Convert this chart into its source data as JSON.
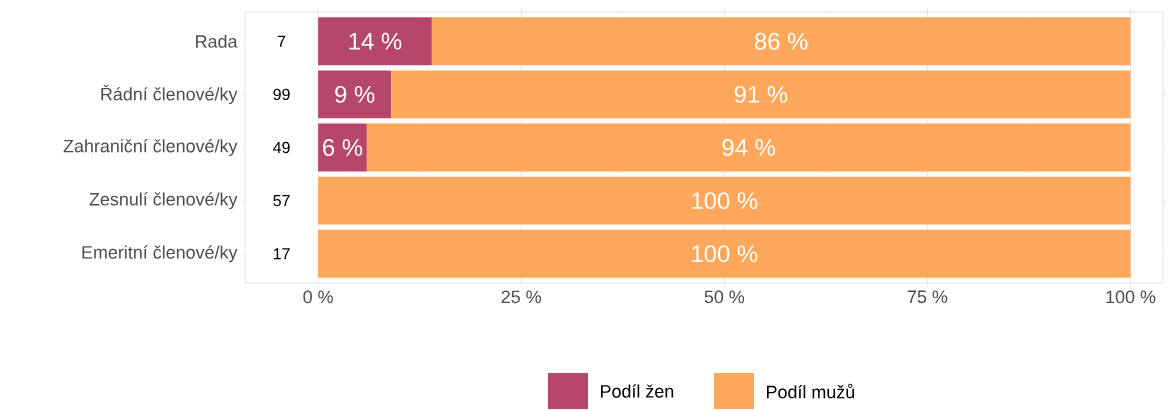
{
  "chart_data": {
    "type": "bar",
    "orientation": "horizontal",
    "stacked": true,
    "categories": [
      "Rada",
      "Řádní členové/ky",
      "Zahraniční členové/ky",
      "Zesnulí členové/ky",
      "Emeritní členové/ky"
    ],
    "series": [
      {
        "name": "Podíl žen",
        "color": "#b5476b",
        "values": [
          14,
          9,
          6,
          0,
          0
        ],
        "value_labels": [
          "14 %",
          "9 %",
          "6 %",
          null,
          null
        ]
      },
      {
        "name": "Podíl mužů",
        "color": "#ffa75b",
        "values": [
          86,
          91,
          94,
          100,
          100
        ],
        "value_labels": [
          "86 %",
          "91 %",
          "94 %",
          "100 %",
          "100 %"
        ]
      }
    ],
    "xlim": [
      -9,
      104
    ],
    "xticks": [
      {
        "value": 0,
        "label": "0 %"
      },
      {
        "value": 25,
        "label": "25 %"
      },
      {
        "value": 50,
        "label": "50 %"
      },
      {
        "value": 75,
        "label": "75 %"
      },
      {
        "value": 100,
        "label": "100 %"
      }
    ],
    "grid": "x",
    "legend": "bottom",
    "annotations": [
      "7",
      "99",
      "49",
      "57",
      "17"
    ]
  }
}
